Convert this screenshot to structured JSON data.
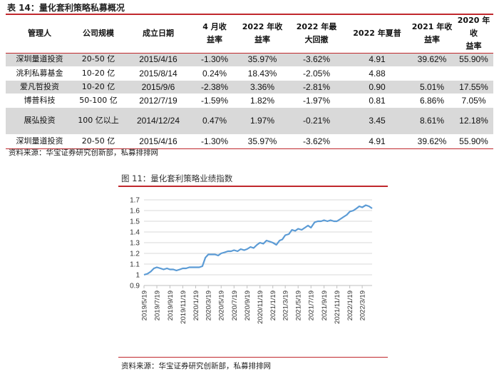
{
  "table": {
    "title": "表 14：量化套利策略私募概况",
    "headers": [
      [
        "管理人"
      ],
      [
        "公司规模"
      ],
      [
        "成立日期"
      ],
      [
        "4 月收",
        "益率"
      ],
      [
        "2022 年收",
        "益率"
      ],
      [
        "2022 年最",
        "大回撤"
      ],
      [
        "2022 年夏普"
      ],
      [
        "2021 年收",
        "益率"
      ],
      [
        "2020 年收",
        "益率"
      ]
    ],
    "rows": [
      {
        "cells": [
          "深圳量道投资",
          "20-50 亿",
          "2015/4/16",
          "-1.30%",
          "35.97%",
          "-3.62%",
          "4.91",
          "39.62%",
          "55.90%"
        ],
        "shade": true
      },
      {
        "cells": [
          "洮利私募基金",
          "10-20 亿",
          "2015/8/14",
          "0.24%",
          "18.43%",
          "-2.05%",
          "4.88",
          "",
          ""
        ],
        "shade": false
      },
      {
        "cells": [
          "爱凡哲投资",
          "10-20 亿",
          "2015/9/6",
          "-2.38%",
          "3.36%",
          "-2.81%",
          "0.90",
          "5.01%",
          "17.55%"
        ],
        "shade": true
      },
      {
        "cells": [
          "博普科技",
          "50-100 亿",
          "2012/7/19",
          "-1.59%",
          "1.82%",
          "-1.97%",
          "0.81",
          "6.86%",
          "7.05%"
        ],
        "shade": false
      },
      {
        "cells": [
          "展弘投资",
          "100 亿以上",
          "2014/12/24",
          "0.47%",
          "1.97%",
          "-0.21%",
          "3.45",
          "8.61%",
          "12.18%"
        ],
        "shade": true,
        "tall": true
      },
      {
        "cells": [
          "深圳量道投资",
          "20-50 亿",
          "2015/4/16",
          "-1.30%",
          "35.97%",
          "-3.62%",
          "4.91",
          "39.62%",
          "55.90%"
        ],
        "shade": false
      }
    ],
    "source": "资料来源：华宝证券研究创新部，私募排排网"
  },
  "figure": {
    "title": "图 11：量化套利策略业绩指数",
    "source": "资料来源：华宝证券研究创新部，私募排排网"
  },
  "chart_data": {
    "type": "line",
    "ylim": [
      0.9,
      1.7
    ],
    "yticks": [
      "0.9",
      "1",
      "1.1",
      "1.2",
      "1.3",
      "1.4",
      "1.5",
      "1.6",
      "1.7"
    ],
    "xticks": [
      "2019/5/19",
      "2019/7/19",
      "2019/9/19",
      "2019/11/19",
      "2020/1/19",
      "2020/3/19",
      "2020/5/19",
      "2020/7/19",
      "2020/9/19",
      "2020/11/19",
      "2021/1/19",
      "2021/3/19",
      "2021/5/19",
      "2021/7/19",
      "2021/9/19",
      "2021/11/19",
      "2022/1/19",
      "2022/3/19"
    ],
    "grid": true,
    "series": [
      {
        "color": "#5b9bd5",
        "x": [
          "2019/5/19",
          "2019/6/5",
          "2019/6/20",
          "2019/7/5",
          "2019/7/19",
          "2019/8/5",
          "2019/8/20",
          "2019/9/5",
          "2019/9/19",
          "2019/10/5",
          "2019/10/20",
          "2019/11/5",
          "2019/11/19",
          "2019/12/5",
          "2019/12/20",
          "2020/1/5",
          "2020/1/19",
          "2020/2/5",
          "2020/2/20",
          "2020/3/5",
          "2020/3/19",
          "2020/4/5",
          "2020/4/20",
          "2020/5/5",
          "2020/5/19",
          "2020/6/5",
          "2020/6/20",
          "2020/7/5",
          "2020/7/19",
          "2020/8/5",
          "2020/8/20",
          "2020/9/5",
          "2020/9/19",
          "2020/10/5",
          "2020/10/20",
          "2020/11/5",
          "2020/11/19",
          "2020/12/5",
          "2020/12/20",
          "2021/1/5",
          "2021/1/19",
          "2021/2/5",
          "2021/2/20",
          "2021/3/5",
          "2021/3/19",
          "2021/4/5",
          "2021/4/20",
          "2021/5/5",
          "2021/5/19",
          "2021/6/5",
          "2021/6/20",
          "2021/7/5",
          "2021/7/19",
          "2021/8/5",
          "2021/8/20",
          "2021/9/5",
          "2021/9/19",
          "2021/10/5",
          "2021/10/20",
          "2021/11/5",
          "2021/11/19",
          "2021/12/5",
          "2021/12/20",
          "2022/1/5",
          "2022/1/19",
          "2022/2/5",
          "2022/2/20",
          "2022/3/5",
          "2022/3/19",
          "2022/4/5",
          "2022/4/20",
          "2022/5/5"
        ],
        "values": [
          1.0,
          1.01,
          1.03,
          1.06,
          1.07,
          1.06,
          1.05,
          1.06,
          1.05,
          1.05,
          1.04,
          1.05,
          1.06,
          1.06,
          1.07,
          1.07,
          1.07,
          1.07,
          1.08,
          1.16,
          1.19,
          1.19,
          1.19,
          1.18,
          1.2,
          1.21,
          1.22,
          1.22,
          1.23,
          1.22,
          1.24,
          1.23,
          1.24,
          1.26,
          1.25,
          1.28,
          1.3,
          1.29,
          1.32,
          1.31,
          1.3,
          1.28,
          1.32,
          1.33,
          1.37,
          1.38,
          1.42,
          1.41,
          1.43,
          1.42,
          1.44,
          1.46,
          1.44,
          1.49,
          1.5,
          1.5,
          1.51,
          1.5,
          1.51,
          1.5,
          1.5,
          1.52,
          1.54,
          1.56,
          1.59,
          1.6,
          1.62,
          1.64,
          1.63,
          1.65,
          1.64,
          1.62
        ]
      }
    ]
  }
}
